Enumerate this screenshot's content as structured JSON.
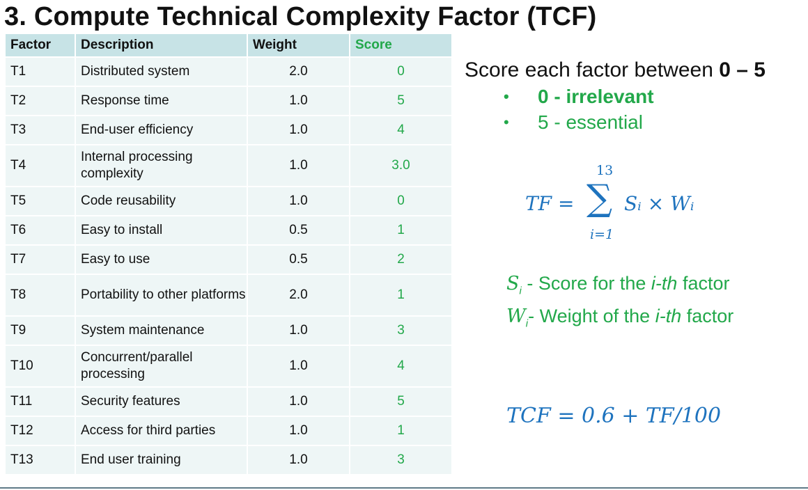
{
  "title": "3. Compute Technical Complexity Factor (TCF)",
  "table": {
    "headers": [
      "Factor",
      "Description",
      "Weight",
      "Score"
    ],
    "rows": [
      {
        "factor": "T1",
        "description": "Distributed system",
        "weight": "2.0",
        "score": "0"
      },
      {
        "factor": "T2",
        "description": "Response time",
        "weight": "1.0",
        "score": "5"
      },
      {
        "factor": "T3",
        "description": "End-user efficiency",
        "weight": "1.0",
        "score": "4"
      },
      {
        "factor": "T4",
        "description": "Internal processing complexity",
        "weight": "1.0",
        "score": "3.0"
      },
      {
        "factor": "T5",
        "description": "Code reusability",
        "weight": "1.0",
        "score": "0"
      },
      {
        "factor": "T6",
        "description": "Easy to install",
        "weight": "0.5",
        "score": "1"
      },
      {
        "factor": "T7",
        "description": "Easy to use",
        "weight": "0.5",
        "score": "2"
      },
      {
        "factor": "T8",
        "description": "Portability to other platforms",
        "weight": "2.0",
        "score": "1"
      },
      {
        "factor": "T9",
        "description": "System maintenance",
        "weight": "1.0",
        "score": "3"
      },
      {
        "factor": "T10",
        "description": "Concurrent/parallel processing",
        "weight": "1.0",
        "score": "4"
      },
      {
        "factor": "T11",
        "description": "Security features",
        "weight": "1.0",
        "score": "5"
      },
      {
        "factor": "T12",
        "description": "Access for third parties",
        "weight": "1.0",
        "score": "1"
      },
      {
        "factor": "T13",
        "description": "End user training",
        "weight": "1.0",
        "score": "3"
      }
    ]
  },
  "scoring": {
    "lead": "Score each factor between ",
    "range": "0 – 5",
    "items": [
      "0 -  irrelevant",
      "5 -  essential"
    ]
  },
  "formula": {
    "tf_lhs": "TF =",
    "sum_upper": "13",
    "sum_lower": "i=1",
    "sum_symbol": "∑",
    "sum_body": "Sᵢ × Wᵢ",
    "tcf": "TCF = 0.6 + TF/100"
  },
  "legend": {
    "s_symbol": "S",
    "s_text_a": " - Score for the ",
    "s_text_b": "i-th",
    "s_text_c": " factor",
    "w_symbol": "W",
    "w_text_a": "- Weight of the ",
    "w_text_b": "i-th",
    "w_text_c": " factor",
    "sub": "i"
  },
  "colors": {
    "header_bg": "#c7e3e6",
    "row_bg": "#eef6f6",
    "green": "#22a84a",
    "blue": "#1e73be"
  }
}
